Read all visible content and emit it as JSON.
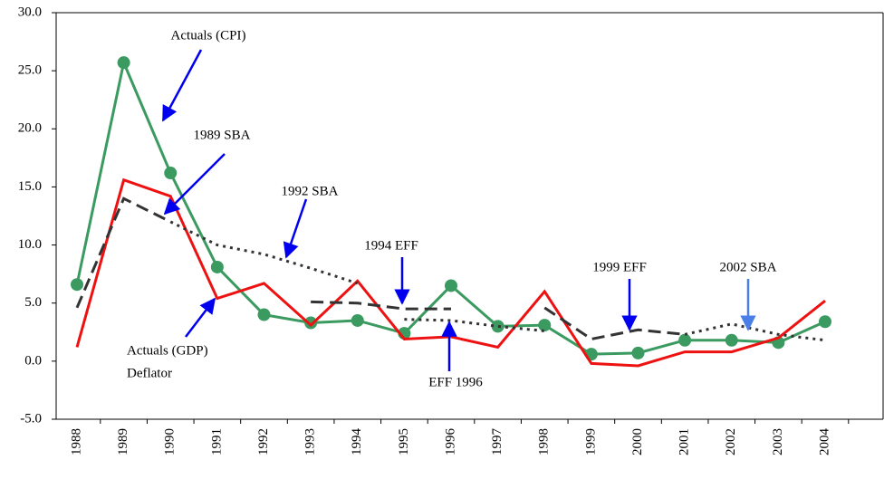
{
  "chart_data": {
    "type": "line",
    "categories": [
      "1988",
      "1989",
      "1990",
      "1991",
      "1992",
      "1993",
      "1994",
      "1995",
      "1996",
      "1997",
      "1998",
      "1999",
      "2000",
      "2001",
      "2002",
      "2003",
      "2004"
    ],
    "ylim": [
      -5,
      30
    ],
    "yticks": [
      {
        "value": -5,
        "label": "-5.0"
      },
      {
        "value": 0,
        "label": "0.0"
      },
      {
        "value": 5,
        "label": "5.0"
      },
      {
        "value": 10,
        "label": "10.0"
      },
      {
        "value": 15,
        "label": "15.0"
      },
      {
        "value": 20,
        "label": "20.0"
      },
      {
        "value": 25,
        "label": "25.0"
      },
      {
        "value": 30,
        "label": "30.0"
      }
    ],
    "grid": false,
    "series": [
      {
        "name": "Actuals (CPI)",
        "color": "#3a9a5f",
        "style": "solid",
        "markers": true,
        "values": [
          6.6,
          25.7,
          16.2,
          8.1,
          4.0,
          3.3,
          3.5,
          2.4,
          6.5,
          3.0,
          3.1,
          0.6,
          0.7,
          1.8,
          1.8,
          1.6,
          3.4
        ]
      },
      {
        "name": "Actuals (GDP)",
        "color": "#ee1111",
        "style": "solid",
        "markers": false,
        "values": [
          1.2,
          15.6,
          14.2,
          5.4,
          6.7,
          3.1,
          6.9,
          1.9,
          2.1,
          1.2,
          6.0,
          -0.2,
          -0.4,
          0.8,
          0.8,
          2.0,
          5.2
        ]
      },
      {
        "name": "1989 SBA",
        "color": "#333333",
        "style": "dashed",
        "markers": false,
        "values": [
          4.6,
          14.0,
          12.0,
          null,
          null,
          null,
          null,
          null,
          null,
          null,
          null,
          null,
          null,
          null,
          null,
          null,
          null
        ]
      },
      {
        "name": "1992 SBA",
        "color": "#333333",
        "style": "dotted",
        "markers": false,
        "values": [
          null,
          null,
          12.0,
          10.0,
          9.2,
          8.0,
          6.7,
          null,
          null,
          null,
          null,
          null,
          null,
          null,
          null,
          null,
          null
        ]
      },
      {
        "name": "1994 EFF",
        "color": "#333333",
        "style": "dashed",
        "markers": false,
        "values": [
          null,
          null,
          null,
          null,
          null,
          5.1,
          5.0,
          4.5,
          4.5,
          null,
          null,
          null,
          null,
          null,
          null,
          null,
          null
        ]
      },
      {
        "name": "EFF 1996",
        "color": "#333333",
        "style": "dotted",
        "markers": false,
        "values": [
          null,
          null,
          null,
          null,
          null,
          null,
          null,
          3.6,
          3.5,
          3.0,
          2.6,
          null,
          null,
          null,
          null,
          null,
          null
        ]
      },
      {
        "name": "1999 EFF",
        "color": "#333333",
        "style": "dashed",
        "markers": false,
        "values": [
          null,
          null,
          null,
          null,
          null,
          null,
          null,
          null,
          null,
          null,
          4.6,
          1.9,
          2.7,
          2.3,
          null,
          null,
          null
        ]
      },
      {
        "name": "2002 SBA",
        "color": "#333333",
        "style": "dotted",
        "markers": false,
        "values": [
          null,
          null,
          null,
          null,
          null,
          null,
          null,
          null,
          null,
          null,
          null,
          null,
          null,
          2.3,
          3.2,
          2.3,
          1.8
        ]
      }
    ],
    "annotations": [
      "Deflator"
    ]
  }
}
